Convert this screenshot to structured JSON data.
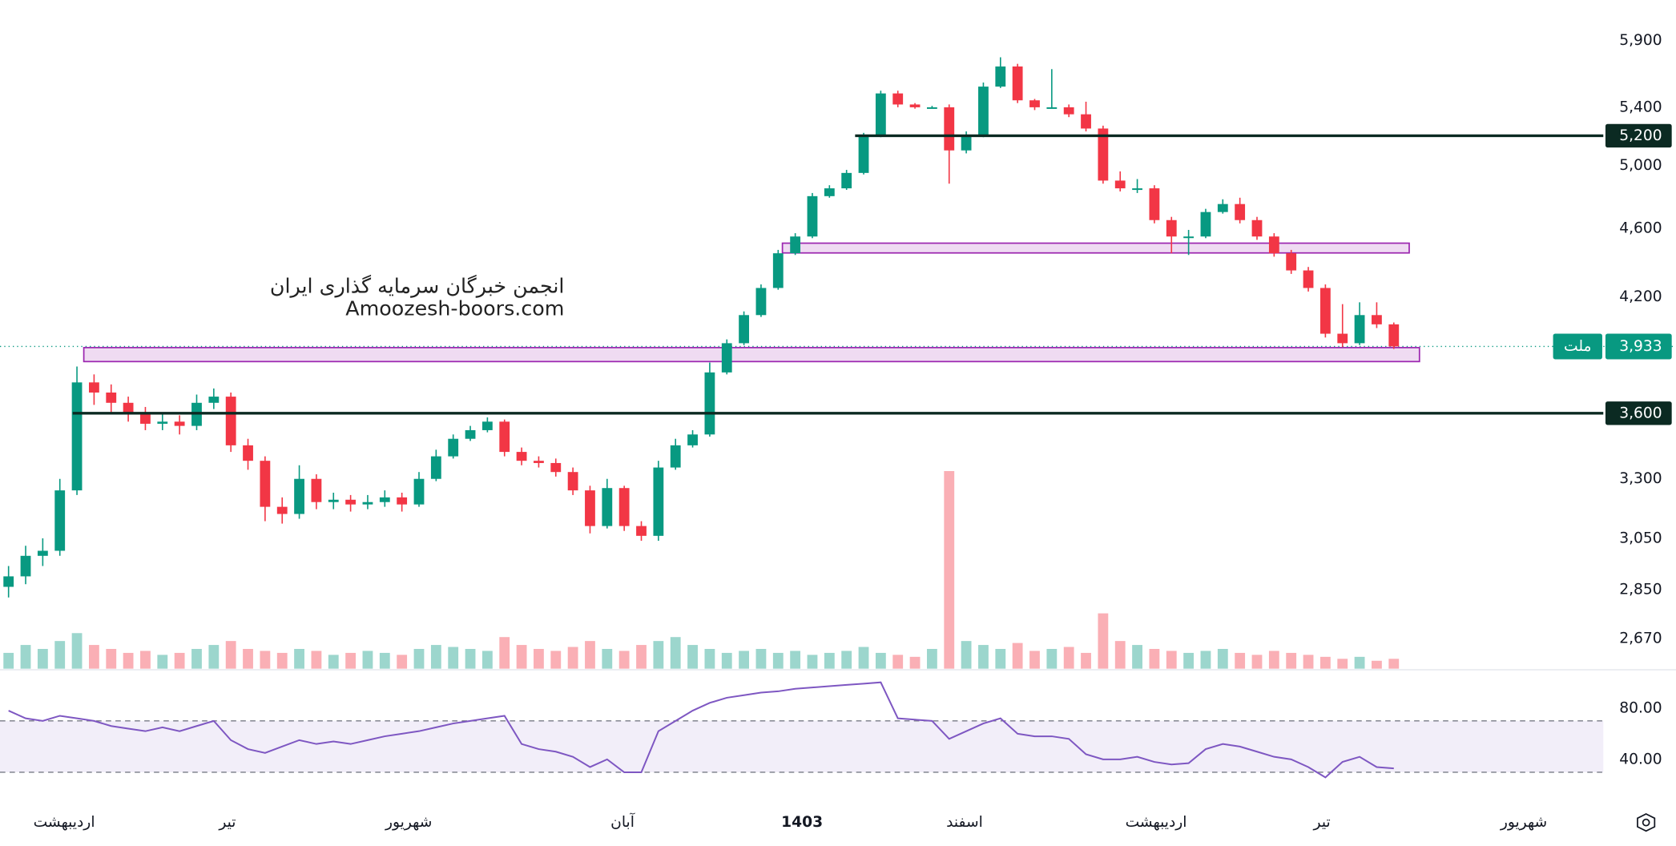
{
  "chart_data": {
    "type": "candlestick",
    "log_scale": true,
    "watermark": [
      "انجمن خبرگان سرمایه گذاری ایران",
      "Amoozesh-boors.com"
    ],
    "up_color": "#089981",
    "down_color": "#f23645",
    "xlim": [
      -0.5,
      93.25
    ],
    "xticks": [
      {
        "value": 3.25,
        "label": "اردیبهشت"
      },
      {
        "value": 12.8,
        "label": "تیر"
      },
      {
        "value": 23.4,
        "label": "شهریور"
      },
      {
        "value": 35.9,
        "label": "آبان"
      },
      {
        "value": 46.4,
        "label": "1403"
      },
      {
        "value": 55.9,
        "label": "اسفند"
      },
      {
        "value": 67.1,
        "label": "اردیبهشت"
      },
      {
        "value": 76.8,
        "label": "تیر"
      },
      {
        "value": 88.6,
        "label": "شهریور"
      }
    ],
    "ylim": [
      2566,
      6225
    ],
    "yticks": [
      {
        "value": 2670,
        "label": "2,670"
      },
      {
        "value": 2850,
        "label": "2,850"
      },
      {
        "value": 3050,
        "label": "3,050"
      },
      {
        "value": 3300,
        "label": "3,300"
      },
      {
        "value": 4200,
        "label": "4,200"
      },
      {
        "value": 4600,
        "label": "4,600"
      },
      {
        "value": 5000,
        "label": "5,000"
      },
      {
        "value": 5400,
        "label": "5,400"
      },
      {
        "value": 5900,
        "label": "5,900"
      }
    ],
    "levels": [
      {
        "value": 5200,
        "label": "5,200",
        "start": 49.5
      },
      {
        "value": 3600,
        "label": "3,600",
        "start": 3.75
      }
    ],
    "zones": [
      {
        "low": 4452,
        "high": 4510,
        "start": 45.25,
        "end": 81.9
      },
      {
        "low": 3855,
        "high": 3927,
        "start": 4.4,
        "end": 82.5
      }
    ],
    "last_price": {
      "value": 3933,
      "label": "3,933",
      "symbol": "ملت"
    },
    "ohlc": [
      [
        2860,
        2940,
        2820,
        2900
      ],
      [
        2900,
        3020,
        2870,
        2980
      ],
      [
        2980,
        3050,
        2940,
        3000
      ],
      [
        3000,
        3300,
        2980,
        3250
      ],
      [
        3250,
        3830,
        3230,
        3750
      ],
      [
        3750,
        3790,
        3640,
        3700
      ],
      [
        3700,
        3740,
        3600,
        3650
      ],
      [
        3650,
        3680,
        3560,
        3600
      ],
      [
        3600,
        3630,
        3520,
        3550
      ],
      [
        3550,
        3600,
        3520,
        3560
      ],
      [
        3560,
        3590,
        3500,
        3540
      ],
      [
        3540,
        3690,
        3520,
        3650
      ],
      [
        3650,
        3720,
        3620,
        3680
      ],
      [
        3680,
        3700,
        3420,
        3450
      ],
      [
        3450,
        3480,
        3340,
        3380
      ],
      [
        3380,
        3400,
        3120,
        3180
      ],
      [
        3180,
        3220,
        3110,
        3150
      ],
      [
        3150,
        3360,
        3130,
        3300
      ],
      [
        3300,
        3320,
        3170,
        3200
      ],
      [
        3200,
        3240,
        3170,
        3210
      ],
      [
        3210,
        3230,
        3160,
        3190
      ],
      [
        3190,
        3230,
        3170,
        3200
      ],
      [
        3200,
        3250,
        3180,
        3220
      ],
      [
        3220,
        3240,
        3160,
        3190
      ],
      [
        3190,
        3330,
        3180,
        3300
      ],
      [
        3300,
        3430,
        3290,
        3400
      ],
      [
        3400,
        3500,
        3390,
        3480
      ],
      [
        3480,
        3540,
        3470,
        3520
      ],
      [
        3520,
        3580,
        3510,
        3560
      ],
      [
        3560,
        3570,
        3400,
        3420
      ],
      [
        3420,
        3440,
        3360,
        3380
      ],
      [
        3380,
        3400,
        3350,
        3370
      ],
      [
        3370,
        3390,
        3310,
        3330
      ],
      [
        3330,
        3350,
        3230,
        3250
      ],
      [
        3250,
        3270,
        3070,
        3100
      ],
      [
        3100,
        3300,
        3090,
        3260
      ],
      [
        3260,
        3270,
        3080,
        3100
      ],
      [
        3100,
        3120,
        3040,
        3060
      ],
      [
        3060,
        3380,
        3040,
        3350
      ],
      [
        3350,
        3480,
        3340,
        3450
      ],
      [
        3450,
        3520,
        3440,
        3500
      ],
      [
        3500,
        3850,
        3490,
        3800
      ],
      [
        3800,
        3970,
        3790,
        3950
      ],
      [
        3950,
        4120,
        3940,
        4100
      ],
      [
        4100,
        4270,
        4090,
        4250
      ],
      [
        4250,
        4470,
        4240,
        4450
      ],
      [
        4450,
        4570,
        4440,
        4550
      ],
      [
        4550,
        4820,
        4540,
        4800
      ],
      [
        4800,
        4870,
        4790,
        4850
      ],
      [
        4850,
        4970,
        4840,
        4950
      ],
      [
        4950,
        5220,
        4940,
        5200
      ],
      [
        5200,
        5520,
        5190,
        5500
      ],
      [
        5500,
        5520,
        5400,
        5420
      ],
      [
        5420,
        5430,
        5390,
        5400
      ],
      [
        5400,
        5410,
        5390,
        5400
      ],
      [
        5400,
        5420,
        4880,
        5100
      ],
      [
        5100,
        5230,
        5080,
        5200
      ],
      [
        5200,
        5580,
        5190,
        5550
      ],
      [
        5550,
        5770,
        5540,
        5700
      ],
      [
        5700,
        5720,
        5430,
        5450
      ],
      [
        5450,
        5460,
        5380,
        5400
      ],
      [
        5400,
        5680,
        5390,
        5400
      ],
      [
        5400,
        5420,
        5330,
        5350
      ],
      [
        5350,
        5440,
        5230,
        5250
      ],
      [
        5250,
        5270,
        4880,
        4900
      ],
      [
        4900,
        4960,
        4830,
        4850
      ],
      [
        4850,
        4910,
        4820,
        4850
      ],
      [
        4850,
        4870,
        4630,
        4650
      ],
      [
        4650,
        4670,
        4450,
        4550
      ],
      [
        4550,
        4590,
        4440,
        4550
      ],
      [
        4550,
        4720,
        4540,
        4700
      ],
      [
        4700,
        4780,
        4690,
        4750
      ],
      [
        4750,
        4790,
        4630,
        4650
      ],
      [
        4650,
        4670,
        4530,
        4550
      ],
      [
        4550,
        4570,
        4430,
        4450
      ],
      [
        4450,
        4470,
        4330,
        4350
      ],
      [
        4350,
        4370,
        4230,
        4250
      ],
      [
        4250,
        4270,
        3980,
        4000
      ],
      [
        4000,
        4160,
        3930,
        3950
      ],
      [
        3950,
        4170,
        3940,
        4100
      ],
      [
        4100,
        4170,
        4030,
        4050
      ],
      [
        4050,
        4060,
        3920,
        3933
      ]
    ],
    "volume": [
      8,
      12,
      10,
      14,
      18,
      12,
      10,
      8,
      9,
      7,
      8,
      10,
      12,
      14,
      10,
      9,
      8,
      10,
      9,
      7,
      8,
      9,
      8,
      7,
      10,
      12,
      11,
      10,
      9,
      16,
      12,
      10,
      9,
      11,
      14,
      10,
      9,
      12,
      14,
      16,
      12,
      10,
      8,
      9,
      10,
      8,
      9,
      7,
      8,
      9,
      11,
      8,
      7,
      6,
      10,
      100,
      14,
      12,
      10,
      13,
      9,
      10,
      11,
      8,
      28,
      14,
      12,
      10,
      9,
      8,
      9,
      10,
      8,
      7,
      9,
      8,
      7,
      6,
      5,
      6,
      4,
      5
    ],
    "rsi": {
      "color": "#7e57c2",
      "ylim": [
        7.5,
        109
      ],
      "band": [
        30,
        70
      ],
      "yticks": [
        {
          "value": 80,
          "label": "80.00"
        },
        {
          "value": 40,
          "label": "40.00"
        }
      ],
      "values": [
        78,
        72,
        70,
        74,
        72,
        70,
        66,
        64,
        62,
        65,
        62,
        66,
        70,
        55,
        48,
        45,
        50,
        55,
        52,
        54,
        52,
        55,
        58,
        60,
        62,
        65,
        68,
        70,
        72,
        74,
        52,
        48,
        46,
        42,
        34,
        40,
        30,
        30,
        62,
        70,
        78,
        84,
        88,
        90,
        92,
        93,
        95,
        96,
        97,
        98,
        99,
        100,
        72,
        71,
        70,
        56,
        62,
        68,
        72,
        60,
        58,
        58,
        56,
        44,
        40,
        40,
        42,
        38,
        36,
        37,
        48,
        52,
        50,
        46,
        42,
        40,
        34,
        26,
        38,
        42,
        34,
        33
      ]
    }
  }
}
